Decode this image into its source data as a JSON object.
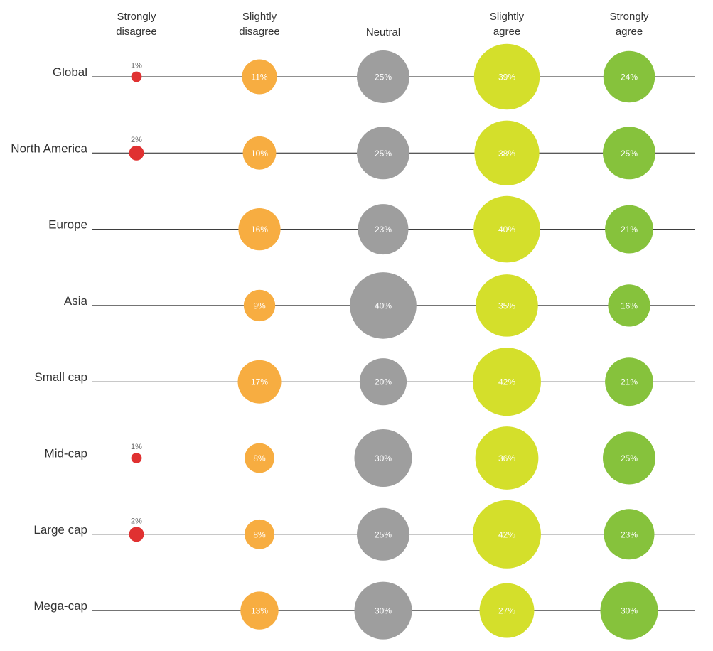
{
  "chart_data": {
    "type": "bubble",
    "columns": [
      {
        "lines": [
          "Strongly",
          "disagree"
        ],
        "color": "#e03131"
      },
      {
        "lines": [
          "Slightly",
          "disagree"
        ],
        "color": "#f7ad41"
      },
      {
        "lines": [
          "Neutral"
        ],
        "color": "#9e9e9e"
      },
      {
        "lines": [
          "Slightly",
          "agree"
        ],
        "color": "#d4df2b"
      },
      {
        "lines": [
          "Strongly",
          "agree"
        ],
        "color": "#86c23c"
      }
    ],
    "rows": [
      {
        "name": "Global",
        "values": [
          1,
          11,
          25,
          39,
          24
        ]
      },
      {
        "name": "North America",
        "values": [
          2,
          10,
          25,
          38,
          25
        ]
      },
      {
        "name": "Europe",
        "values": [
          null,
          16,
          23,
          40,
          21
        ]
      },
      {
        "name": "Asia",
        "values": [
          null,
          9,
          40,
          35,
          16
        ]
      },
      {
        "name": "Small cap",
        "values": [
          null,
          17,
          20,
          42,
          21
        ]
      },
      {
        "name": "Mid-cap",
        "values": [
          1,
          8,
          30,
          36,
          25
        ]
      },
      {
        "name": "Large cap",
        "values": [
          2,
          8,
          25,
          42,
          23
        ]
      },
      {
        "name": "Mega-cap",
        "values": [
          null,
          13,
          30,
          27,
          30
        ]
      }
    ],
    "value_suffix": "%"
  }
}
